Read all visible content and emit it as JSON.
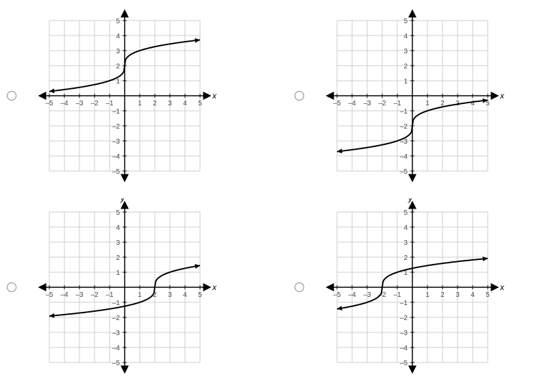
{
  "layout": {
    "rows": 2,
    "cols": 2,
    "cell_gap_x": 60,
    "cell_gap_y": 20
  },
  "axis": {
    "xlim": [
      -5,
      5
    ],
    "ylim": [
      -5,
      5
    ],
    "xticks": [
      -5,
      -4,
      -3,
      -2,
      -1,
      1,
      2,
      3,
      4,
      5
    ],
    "yticks": [
      -5,
      -4,
      -3,
      -2,
      -1,
      1,
      2,
      3,
      4,
      5
    ],
    "xlabel": "x",
    "ylabel": "y",
    "tick_fontsize": 10,
    "label_fontsize": 12,
    "grid_color": "#cccccc",
    "axis_color": "#000000",
    "curve_color": "#000000",
    "background_color": "#ffffff",
    "line_width_grid": 1,
    "line_width_axis": 1.5,
    "line_width_curve": 2,
    "arrow_size": 6
  },
  "charts": [
    {
      "id": "a",
      "show_ylabel": false,
      "curve": {
        "type": "cuberoot",
        "h": 0,
        "k": 2,
        "a": 1,
        "xstart": -5,
        "xend": 5
      }
    },
    {
      "id": "b",
      "show_ylabel": false,
      "curve": {
        "type": "cuberoot",
        "h": 0,
        "k": -2,
        "a": 1,
        "xstart": -5,
        "xend": 5
      }
    },
    {
      "id": "c",
      "show_ylabel": true,
      "curve": {
        "type": "cuberoot",
        "h": 2,
        "k": 0,
        "a": 1,
        "xstart": -5,
        "xend": 5
      }
    },
    {
      "id": "d",
      "show_ylabel": true,
      "curve": {
        "type": "cuberoot",
        "h": -2,
        "k": 0,
        "a": 1,
        "xstart": -5,
        "xend": 5
      }
    }
  ]
}
